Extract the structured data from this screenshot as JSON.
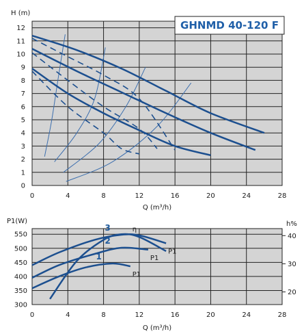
{
  "chart_data": [
    {
      "type": "line",
      "title": "GHNMD 40-120 F",
      "ylabel": "H (m)",
      "xlabel": "Q (m³/h)",
      "xlim": [
        0,
        28
      ],
      "ylim": [
        0,
        12.5
      ],
      "xticks": [
        "0",
        "4",
        "8",
        "12",
        "16",
        "20",
        "24",
        "28"
      ],
      "yticks": [
        "0",
        "1",
        "2",
        "3",
        "4",
        "5",
        "6",
        "7",
        "8",
        "9",
        "10",
        "11",
        "12"
      ],
      "grid": true,
      "colors": {
        "plot_bg": "#d4d4d4",
        "curve": "#1c4f8f",
        "system": "#3d6fae",
        "title": "#1f5fa8"
      },
      "pump_curves": [
        {
          "style": "solid",
          "points": [
            [
              0,
              11.4
            ],
            [
              5,
              10.3
            ],
            [
              10,
              8.9
            ],
            [
              15,
              7.2
            ],
            [
              20,
              5.5
            ],
            [
              26,
              4.0
            ]
          ]
        },
        {
          "style": "solid",
          "points": [
            [
              0,
              10.4
            ],
            [
              5,
              8.7
            ],
            [
              10,
              7.1
            ],
            [
              15,
              5.5
            ],
            [
              20,
              4.0
            ],
            [
              25,
              2.7
            ]
          ]
        },
        {
          "style": "solid",
          "points": [
            [
              0,
              8.9
            ],
            [
              4,
              7.0
            ],
            [
              8,
              5.5
            ],
            [
              12,
              4.2
            ],
            [
              16,
              3.0
            ],
            [
              20,
              2.3
            ]
          ]
        },
        {
          "style": "dashed",
          "points": [
            [
              0,
              11.2
            ],
            [
              4,
              9.8
            ],
            [
              8,
              8.4
            ],
            [
              12,
              6.6
            ],
            [
              16,
              2.7
            ]
          ]
        },
        {
          "style": "dashed",
          "points": [
            [
              0,
              10.1
            ],
            [
              4,
              8.0
            ],
            [
              8,
              6.0
            ],
            [
              12,
              4.3
            ],
            [
              14,
              2.8
            ]
          ]
        },
        {
          "style": "dashed",
          "points": [
            [
              0,
              8.7
            ],
            [
              4,
              6.0
            ],
            [
              8,
              4.0
            ],
            [
              10,
              2.8
            ],
            [
              12,
              2.4
            ]
          ]
        }
      ],
      "system_curves": [
        {
          "points": [
            [
              1.4,
              2.2
            ],
            [
              2.2,
              5.0
            ],
            [
              3.0,
              8.5
            ],
            [
              3.7,
              11.5
            ]
          ]
        },
        {
          "points": [
            [
              2.5,
              1.8
            ],
            [
              5.0,
              4.0
            ],
            [
              7.0,
              6.6
            ],
            [
              8.2,
              10.5
            ]
          ]
        },
        {
          "points": [
            [
              3.5,
              1.0
            ],
            [
              7.5,
              3.2
            ],
            [
              10.5,
              6.0
            ],
            [
              12.7,
              9.0
            ]
          ]
        },
        {
          "points": [
            [
              3.8,
              0.3
            ],
            [
              9.0,
              1.8
            ],
            [
              14.0,
              4.5
            ],
            [
              17.8,
              7.8
            ]
          ]
        }
      ]
    },
    {
      "type": "line",
      "ylabel": "P1(W)",
      "y2label": "h%",
      "xlabel": "Q (m³/h)",
      "xlim": [
        0,
        28
      ],
      "ylim": [
        300,
        570
      ],
      "y2lim": [
        15.5,
        42.5
      ],
      "xticks": [
        "0",
        "4",
        "8",
        "12",
        "16",
        "20",
        "24",
        "28"
      ],
      "yticks": [
        "300",
        "350",
        "400",
        "450",
        "500",
        "550"
      ],
      "y2ticks": [
        "20",
        "30",
        "40"
      ],
      "grid": true,
      "power_curves": [
        {
          "label": "1",
          "tag": "P1",
          "points": [
            [
              0,
              358
            ],
            [
              3,
              400
            ],
            [
              6,
              432
            ],
            [
              9,
              446
            ],
            [
              11,
              436
            ]
          ]
        },
        {
          "label": "2",
          "tag": "P1",
          "points": [
            [
              0,
              395
            ],
            [
              3,
              440
            ],
            [
              7,
              480
            ],
            [
              10,
              502
            ],
            [
              13,
              495
            ]
          ]
        },
        {
          "label": "3",
          "tag": "P1",
          "points": [
            [
              0,
              440
            ],
            [
              3,
              485
            ],
            [
              7,
              530
            ],
            [
              10,
              548
            ],
            [
              12,
              546
            ],
            [
              15,
              518
            ]
          ]
        }
      ],
      "efficiency_curve": {
        "label": "η",
        "points": [
          [
            2,
            17.5
          ],
          [
            5,
            31
          ],
          [
            8,
            38.5
          ],
          [
            10,
            40.5
          ],
          [
            12,
            39.5
          ],
          [
            15,
            34.5
          ]
        ]
      }
    }
  ]
}
